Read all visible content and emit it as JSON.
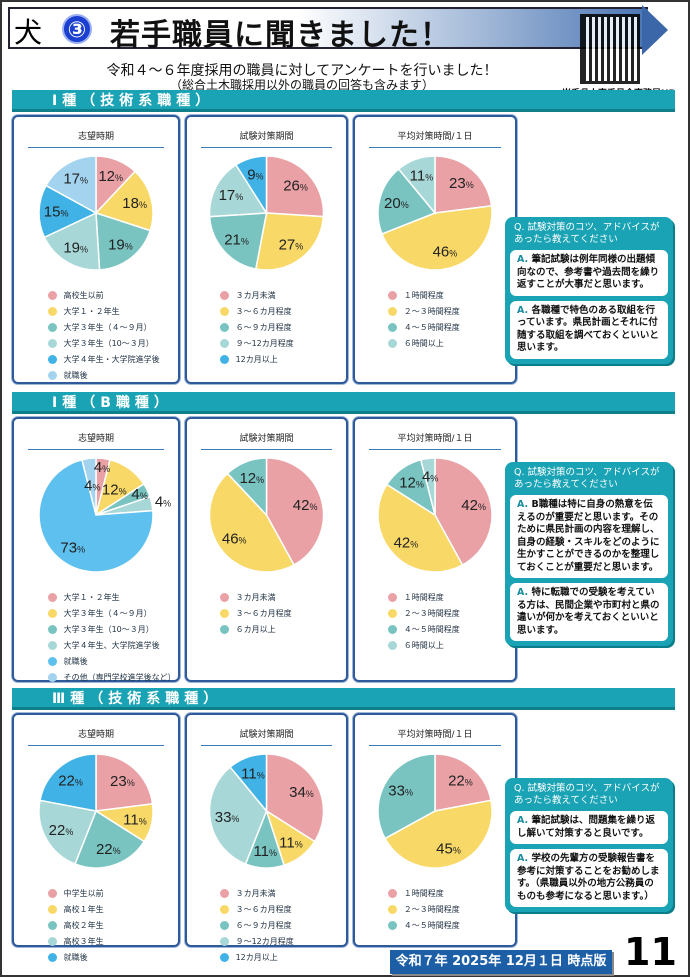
{
  "header": {
    "title": "若手職員に聞きました！",
    "number": "③",
    "logo": "岩手県章",
    "qr_label": "岩手県人事委員会事務局HP"
  },
  "subtitle": "令和４～６年度採用の職員に対してアンケートを行いました！",
  "subtitle_note": "（総合土木職採用以外の職員の回答も含みます）",
  "colors": {
    "pink": "#e9a1a6",
    "yellow": "#f8d866",
    "teal": "#79c3c1",
    "lightteal": "#a8d7d8",
    "blue": "#40b2e6",
    "lightblue": "#a3d3ee",
    "bar": "#1aa3b4"
  },
  "sections": [
    {
      "title": "Ⅰ種（技術系職種）",
      "charts": [
        {
          "type": "pie",
          "title": "志望時期",
          "labels": [
            "高校生以前",
            "大学１・２年生",
            "大学３年生（４～９月）",
            "大学３年生（10～３月）",
            "大学４年生・大学院進学後",
            "就職後"
          ],
          "values": [
            12,
            18,
            19,
            19,
            15,
            17
          ],
          "colors": [
            "#e9a1a6",
            "#f8d866",
            "#79c3c1",
            "#a8d7d8",
            "#40b2e6",
            "#a3d3ee"
          ]
        },
        {
          "type": "pie",
          "title": "試験対策期間",
          "labels": [
            "３カ月未満",
            "３～６カ月程度",
            "６～９カ月程度",
            "９～12カ月程度",
            "12カ月以上"
          ],
          "values": [
            26,
            27,
            21,
            17,
            9
          ],
          "colors": [
            "#e9a1a6",
            "#f8d866",
            "#79c3c1",
            "#a8d7d8",
            "#40b2e6"
          ]
        },
        {
          "type": "pie",
          "title": "平均対策時間/１日",
          "labels": [
            "１時間程度",
            "２～３時間程度",
            "４～５時間程度",
            "６時間以上"
          ],
          "values": [
            23,
            46,
            20,
            11
          ],
          "colors": [
            "#e9a1a6",
            "#f8d866",
            "#79c3c1",
            "#a8d7d8"
          ]
        }
      ],
      "qa": {
        "q": "Q. 試験対策のコツ、アドバイスがあったら教えてください",
        "answers": [
          "筆記試験は例年同様の出題傾向なので、参考書や過去問を繰り返すことが大事だと思います。",
          "各職種で特色のある取組を行っています。県民計画とそれに付随する取組を調べておくといいと思います。"
        ]
      }
    },
    {
      "title": "Ⅰ種（B職種）",
      "charts": [
        {
          "type": "pie",
          "title": "志望時期",
          "labels": [
            "大学１・２年生",
            "大学３年生（４～９月）",
            "大学３年生（10～３月）",
            "大学４年生、大学院進学後",
            "就職後",
            "その他（専門学校進学後など）"
          ],
          "values": [
            4,
            12,
            4,
            4,
            73,
            4
          ],
          "colors": [
            "#e9a1a6",
            "#f8d866",
            "#79c3c1",
            "#a8d7d8",
            "#5ec0ee",
            "#a3d3ee"
          ]
        },
        {
          "type": "pie",
          "title": "試験対策期間",
          "labels": [
            "３カ月未満",
            "３～６カ月程度",
            "６カ月以上"
          ],
          "values": [
            42,
            46,
            12
          ],
          "colors": [
            "#e9a1a6",
            "#f8d866",
            "#79c3c1"
          ]
        },
        {
          "type": "pie",
          "title": "平均対策時間/１日",
          "labels": [
            "１時間程度",
            "２～３時間程度",
            "４～５時間程度",
            "６時間以上"
          ],
          "values": [
            42,
            42,
            12,
            4
          ],
          "colors": [
            "#e9a1a6",
            "#f8d866",
            "#79c3c1",
            "#a8d7d8"
          ]
        }
      ],
      "qa": {
        "q": "Q. 試験対策のコツ、アドバイスがあったら教えてください",
        "answers": [
          "B職種は特に自身の熱意を伝えるのが重要だと思います。そのために県民計画の内容を理解し、自身の経験・スキルをどのように生かすことができるのかを整理しておくことが重要だと思います。",
          "特に転職での受験を考えている方は、民間企業や市町村と県の違いが何かを考えておくといいと思います。"
        ]
      }
    },
    {
      "title": "Ⅲ種（技術系職種）",
      "charts": [
        {
          "type": "pie",
          "title": "志望時期",
          "labels": [
            "中学生以前",
            "高校１年生",
            "高校２年生",
            "高校３年生",
            "就職後"
          ],
          "values": [
            23,
            11,
            22,
            22,
            22
          ],
          "colors": [
            "#e9a1a6",
            "#f8d866",
            "#79c3c1",
            "#a8d7d8",
            "#40b2e6"
          ]
        },
        {
          "type": "pie",
          "title": "試験対策期間",
          "labels": [
            "３カ月未満",
            "３～６カ月程度",
            "６～９カ月程度",
            "９～12カ月程度",
            "12カ月以上"
          ],
          "values": [
            34,
            11,
            11,
            33,
            11
          ],
          "colors": [
            "#e9a1a6",
            "#f8d866",
            "#79c3c1",
            "#a8d7d8",
            "#40b2e6"
          ]
        },
        {
          "type": "pie",
          "title": "平均対策時間/１日",
          "labels": [
            "１時間程度",
            "２～３時間程度",
            "４～５時間程度"
          ],
          "values": [
            22,
            45,
            33
          ],
          "colors": [
            "#e9a1a6",
            "#f8d866",
            "#79c3c1"
          ]
        }
      ],
      "qa": {
        "q": "Q. 試験対策のコツ、アドバイスがあったら教えてください",
        "answers": [
          "筆記試験は、問題集を繰り返し解いて対策すると良いです。",
          "学校の先輩方の受験報告書を参考に対策することをお勧めします。（県職員以外の地方公務員のものも参考になると思います。）"
        ]
      }
    }
  ],
  "answer_prefix": "A.",
  "percent_unit": "%",
  "footer": {
    "date": "令和７年 2025年 12月１日 時点版",
    "page": "11"
  }
}
